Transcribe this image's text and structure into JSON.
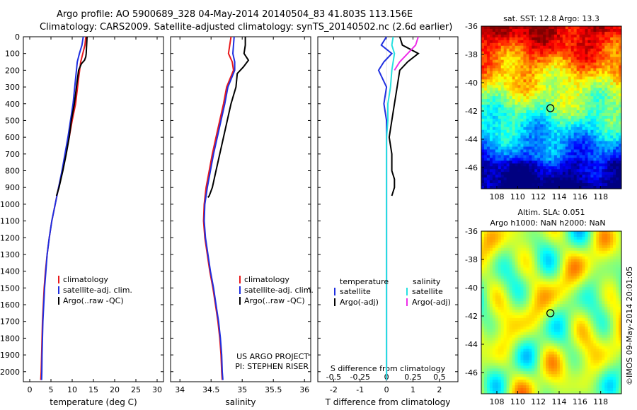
{
  "title_line1": "Argo profile: AO 5900689_328 04-May-2014 20140504_83 41.803S 113.156E",
  "title_line2": "Climatology: CARS2009. Satellite-adjusted climatology: synTS_20140502.nc (2.6d earlier)",
  "side_stamp": "©IMOS 09-May-2014 20:01:05",
  "colors": {
    "climatology": "#e8191c",
    "satellite": "#1f2fe0",
    "argo": "#000000",
    "sat_salinity": "#27e0e0",
    "argo_adj_salinity": "#ee2ee8"
  },
  "chart_data": [
    {
      "type": "line",
      "xlabel": "temperature (deg C)",
      "ylabel": "",
      "xlim": [
        -1.5,
        31.5
      ],
      "ylim": [
        2060,
        0
      ],
      "xticks": [
        "0",
        "5",
        "10",
        "15",
        "20",
        "25",
        "30"
      ],
      "yticks": [
        "0",
        "100",
        "200",
        "300",
        "400",
        "500",
        "600",
        "700",
        "800",
        "900",
        "1000",
        "1100",
        "1200",
        "1300",
        "1400",
        "1500",
        "1600",
        "1700",
        "1800",
        "1900",
        "2000"
      ],
      "legend": [
        "climatology",
        "satellite-adj. clim.",
        "Argo(..raw -QC)"
      ],
      "series": [
        {
          "name": "climatology",
          "color": "#e8191c",
          "x": [
            13.2,
            13.0,
            12.5,
            12.0,
            11.5,
            10.8,
            10.0,
            9.3,
            8.5,
            7.7,
            6.8,
            6.0,
            5.2,
            4.6,
            4.1,
            3.7,
            3.4,
            3.2,
            3.0,
            2.9,
            2.8,
            2.7,
            2.6
          ],
          "y": [
            0,
            50,
            100,
            150,
            250,
            400,
            500,
            600,
            700,
            800,
            900,
            1000,
            1100,
            1200,
            1300,
            1400,
            1500,
            1600,
            1700,
            1800,
            1900,
            2000,
            2050
          ]
        },
        {
          "name": "satellite-adj. clim.",
          "color": "#1f2fe0",
          "x": [
            12.6,
            12.3,
            11.7,
            11.2,
            10.8,
            10.2,
            9.6,
            9.0,
            8.3,
            7.6,
            6.8,
            6.0,
            5.2,
            4.6,
            4.1,
            3.8,
            3.5,
            3.3,
            3.1,
            3.0,
            2.9,
            2.85,
            2.8
          ],
          "y": [
            0,
            50,
            100,
            150,
            250,
            400,
            500,
            600,
            700,
            800,
            900,
            1000,
            1100,
            1200,
            1300,
            1400,
            1500,
            1600,
            1700,
            1800,
            1900,
            2000,
            2050
          ]
        },
        {
          "name": "Argo(..raw -QC)",
          "color": "#000000",
          "x": [
            13.5,
            13.4,
            13.3,
            13.2,
            12.9,
            12.2,
            11.5,
            11.0,
            10.5,
            9.8,
            9.3,
            8.6,
            7.8,
            6.9,
            6.3
          ],
          "y": [
            0,
            50,
            100,
            120,
            140,
            160,
            200,
            300,
            400,
            500,
            600,
            700,
            800,
            900,
            950
          ]
        }
      ]
    },
    {
      "type": "line",
      "xlabel": "salinity",
      "ylabel": "",
      "xlim": [
        33.85,
        36.1
      ],
      "ylim": [
        2060,
        0
      ],
      "xticks": [
        "34",
        "34.5",
        "35",
        "35.5",
        "36"
      ],
      "legend": [
        "climatology",
        "satellite-adj. clim.",
        "Argo(..raw -QC)"
      ],
      "annotations": [
        "US ARGO PROJECT",
        "PI: STEPHEN RISER"
      ],
      "series": [
        {
          "name": "climatology",
          "color": "#e8191c",
          "x": [
            34.82,
            34.8,
            34.78,
            34.84,
            34.86,
            34.75,
            34.7,
            34.64,
            34.58,
            34.52,
            34.47,
            34.42,
            34.39,
            34.38,
            34.4,
            34.44,
            34.48,
            34.53,
            34.57,
            34.61,
            34.64,
            34.66,
            34.67,
            34.68
          ],
          "y": [
            0,
            50,
            100,
            150,
            200,
            300,
            400,
            500,
            600,
            700,
            800,
            900,
            1000,
            1100,
            1200,
            1300,
            1400,
            1500,
            1600,
            1700,
            1800,
            1900,
            2000,
            2050
          ]
        },
        {
          "name": "satellite-adj. clim.",
          "color": "#1f2fe0",
          "x": [
            34.87,
            34.86,
            34.85,
            34.88,
            34.88,
            34.77,
            34.72,
            34.66,
            34.6,
            34.54,
            34.49,
            34.44,
            34.4,
            34.39,
            34.41,
            34.45,
            34.49,
            34.54,
            34.58,
            34.62,
            34.65,
            34.67,
            34.68,
            34.69
          ],
          "y": [
            0,
            50,
            100,
            150,
            200,
            300,
            400,
            500,
            600,
            700,
            800,
            900,
            1000,
            1100,
            1200,
            1300,
            1400,
            1500,
            1600,
            1700,
            1800,
            1900,
            2000,
            2050
          ]
        },
        {
          "name": "Argo(..raw -QC)",
          "color": "#000000",
          "x": [
            35.05,
            35.05,
            35.03,
            35.1,
            35.02,
            34.92,
            34.9,
            34.82,
            34.76,
            34.7,
            34.64,
            34.58,
            34.52,
            34.47,
            34.45
          ],
          "y": [
            0,
            50,
            100,
            140,
            180,
            220,
            300,
            400,
            500,
            600,
            700,
            800,
            900,
            950,
            960
          ]
        }
      ]
    },
    {
      "type": "line",
      "xlabel": "T difference from climatology",
      "xlabel2": "S difference from climatology",
      "xlim": [
        -2.6,
        2.7
      ],
      "ylim": [
        2060,
        0
      ],
      "xticks": [
        "-2",
        "-1",
        "0",
        "1",
        "2"
      ],
      "xticks_top": [
        "-0.5",
        "-0.25",
        "0",
        "0.25",
        "0.5"
      ],
      "legend_title_left": "temperature",
      "legend_title_right": "salinity",
      "legend_left": [
        "satellite",
        "Argo(-adj)"
      ],
      "legend_right": [
        "satellite",
        "Argo(-adj)"
      ],
      "series": [
        {
          "name": "satellite",
          "group": "temperature",
          "color": "#1f2fe0",
          "x": [
            0,
            -0.2,
            0.2,
            -0.1,
            -0.3,
            0.0,
            -0.1,
            0,
            0,
            0,
            0,
            0,
            0,
            0,
            0,
            0,
            0,
            0,
            0
          ],
          "y": [
            0,
            50,
            100,
            150,
            200,
            300,
            400,
            500,
            600,
            700,
            800,
            900,
            1000,
            1200,
            1400,
            1600,
            1800,
            2000,
            2050
          ]
        },
        {
          "name": "Argo(-adj)",
          "group": "temperature",
          "color": "#000000",
          "x": [
            0.5,
            0.6,
            1.2,
            0.8,
            0.5,
            0.4,
            0.3,
            0.2,
            0.1,
            0.2,
            0.2,
            0.3,
            0.3,
            0.2
          ],
          "y": [
            0,
            50,
            100,
            150,
            200,
            300,
            400,
            500,
            600,
            700,
            800,
            850,
            900,
            950
          ]
        },
        {
          "name": "satellite",
          "group": "salinity",
          "color": "#27e0e0",
          "x": [
            0.25,
            0.2,
            0.3,
            0.25,
            0.2,
            0.15,
            0.05,
            0.05,
            0.0,
            0.0,
            0.0,
            0,
            0,
            0,
            0,
            0
          ],
          "y": [
            0,
            50,
            100,
            150,
            200,
            300,
            400,
            500,
            600,
            700,
            800,
            1000,
            1200,
            1500,
            1800,
            2050
          ]
        },
        {
          "name": "Argo(-adj)",
          "group": "salinity",
          "color": "#ee2ee8",
          "x": [
            1.2,
            1.1,
            0.8,
            0.5,
            0.3
          ],
          "y": [
            0,
            50,
            100,
            150,
            200
          ]
        }
      ]
    },
    {
      "type": "heatmap",
      "title": "sat. SST: 12.8 Argo: 13.3",
      "xlim": [
        106.5,
        120
      ],
      "ylim": [
        -47.5,
        -36
      ],
      "xticks": [
        "108",
        "110",
        "112",
        "114",
        "116",
        "118"
      ],
      "yticks": [
        "-36",
        "-38",
        "-40",
        "-42",
        "-44",
        "-46"
      ],
      "marker": {
        "lon": 113.156,
        "lat": -41.803
      }
    },
    {
      "type": "heatmap",
      "title": "Altim. SLA: 0.051",
      "subtitle": "Argo h1000: NaN h2000: NaN",
      "xlim": [
        106.5,
        120
      ],
      "ylim": [
        -47.5,
        -36
      ],
      "xticks": [
        "108",
        "110",
        "112",
        "114",
        "116",
        "118"
      ],
      "yticks": [
        "-36",
        "-38",
        "-40",
        "-42",
        "-44",
        "-46"
      ],
      "marker": {
        "lon": 113.156,
        "lat": -41.803
      }
    }
  ]
}
